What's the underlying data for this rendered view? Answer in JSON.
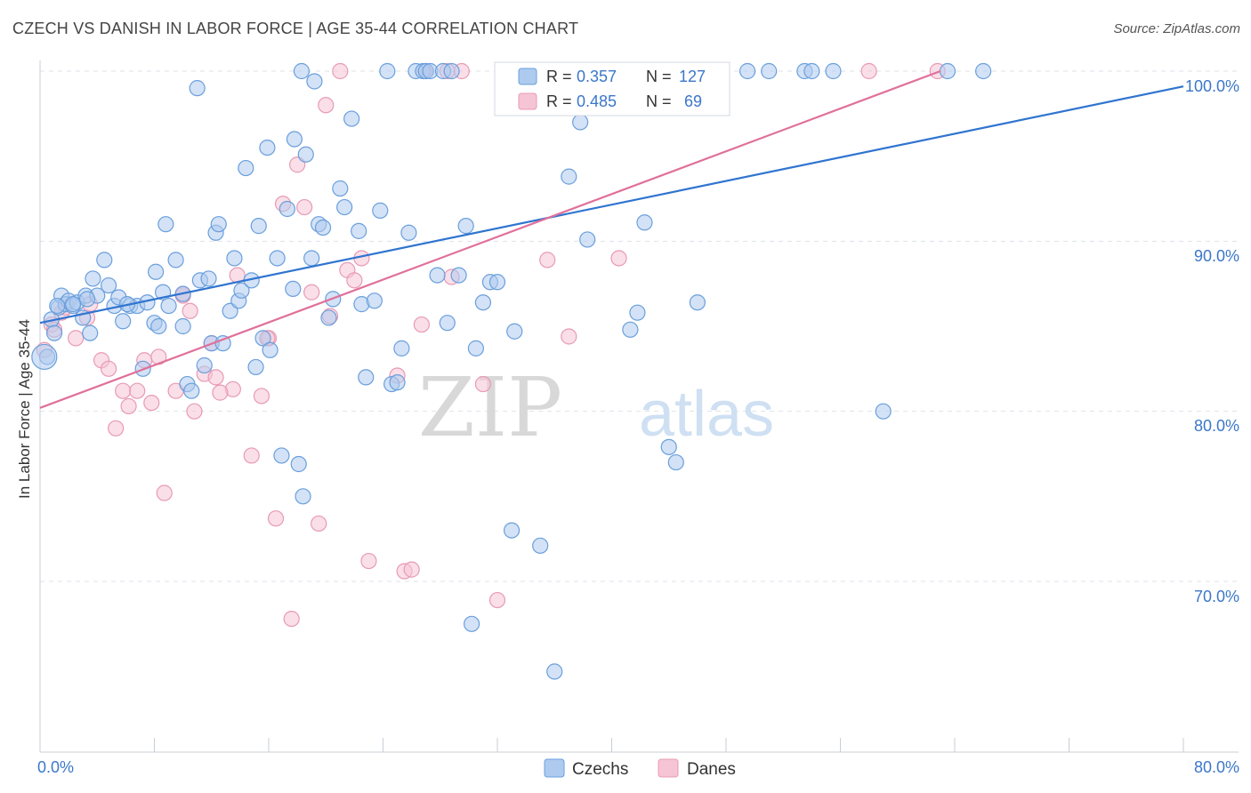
{
  "title": "CZECH VS DANISH IN LABOR FORCE | AGE 35-44 CORRELATION CHART",
  "source": "Source: ZipAtlas.com",
  "watermark": {
    "zip": "ZIP",
    "atlas": "atlas"
  },
  "colors": {
    "czech_fill": "#aecbef",
    "czech_stroke": "#6a9fdc",
    "czech_line": "#2f74d0",
    "danish_fill": "#f6c5d5",
    "danish_stroke": "#e89ab4",
    "danish_line": "#e0709a",
    "axis_text": "#3b77c9",
    "grid": "#dde2ea"
  },
  "chart_data": {
    "type": "scatter",
    "title": "CZECH VS DANISH IN LABOR FORCE | AGE 35-44 CORRELATION CHART",
    "xlabel": "",
    "ylabel": "In Labor Force | Age 35-44",
    "xlim": [
      0,
      80
    ],
    "ylim": [
      60,
      101
    ],
    "x_tick_labels": [
      "0.0%",
      "80.0%"
    ],
    "y_ticks": [
      70,
      80,
      90,
      100
    ],
    "y_tick_labels": [
      "70.0%",
      "80.0%",
      "90.0%",
      "100.0%"
    ],
    "grid": true,
    "legend": {
      "placement": "top-center",
      "rows": [
        {
          "r_label": "R =",
          "r_value": "0.357",
          "n_label": "N =",
          "n_value": "127"
        },
        {
          "r_label": "R =",
          "r_value": "0.485",
          "n_label": "N =",
          "n_value": "69"
        }
      ]
    },
    "series": [
      {
        "name": "Czechs",
        "trend": {
          "x": [
            0,
            80
          ],
          "y": [
            85.2,
            99.1
          ]
        },
        "points": [
          [
            0.5,
            83.2
          ],
          [
            0.8,
            85.4
          ],
          [
            1.0,
            84.6
          ],
          [
            1.3,
            86.1
          ],
          [
            1.5,
            86.8
          ],
          [
            1.8,
            86.3
          ],
          [
            2.0,
            86.5
          ],
          [
            2.3,
            86.2
          ],
          [
            2.6,
            86.4
          ],
          [
            3.0,
            85.5
          ],
          [
            3.2,
            86.8
          ],
          [
            3.5,
            84.6
          ],
          [
            3.7,
            87.8
          ],
          [
            4.0,
            86.8
          ],
          [
            4.5,
            88.9
          ],
          [
            4.8,
            87.4
          ],
          [
            5.2,
            86.2
          ],
          [
            5.5,
            86.7
          ],
          [
            5.8,
            85.3
          ],
          [
            6.3,
            86.2
          ],
          [
            6.8,
            86.2
          ],
          [
            7.2,
            82.5
          ],
          [
            7.5,
            86.4
          ],
          [
            8.0,
            85.2
          ],
          [
            8.1,
            88.2
          ],
          [
            8.3,
            85.0
          ],
          [
            8.6,
            87.0
          ],
          [
            9.0,
            86.2
          ],
          [
            9.5,
            88.9
          ],
          [
            10.0,
            86.9
          ],
          [
            10.0,
            85.0
          ],
          [
            10.3,
            81.6
          ],
          [
            10.6,
            81.2
          ],
          [
            11.2,
            87.7
          ],
          [
            11.5,
            82.7
          ],
          [
            11.8,
            87.8
          ],
          [
            12.0,
            84.0
          ],
          [
            12.3,
            90.5
          ],
          [
            12.5,
            91.0
          ],
          [
            12.8,
            84.0
          ],
          [
            13.3,
            85.9
          ],
          [
            13.6,
            89.0
          ],
          [
            13.9,
            86.5
          ],
          [
            14.1,
            87.1
          ],
          [
            14.4,
            94.3
          ],
          [
            14.8,
            87.7
          ],
          [
            15.1,
            82.6
          ],
          [
            15.3,
            90.9
          ],
          [
            15.6,
            84.3
          ],
          [
            15.9,
            95.5
          ],
          [
            16.1,
            83.6
          ],
          [
            16.6,
            89.0
          ],
          [
            16.9,
            77.4
          ],
          [
            17.3,
            91.9
          ],
          [
            17.7,
            87.2
          ],
          [
            18.1,
            76.9
          ],
          [
            18.4,
            75.0
          ],
          [
            18.6,
            95.1
          ],
          [
            19.0,
            89.0
          ],
          [
            19.2,
            99.4
          ],
          [
            19.5,
            91.0
          ],
          [
            19.8,
            90.8
          ],
          [
            20.2,
            85.5
          ],
          [
            20.5,
            86.6
          ],
          [
            21.0,
            93.1
          ],
          [
            21.3,
            92.0
          ],
          [
            21.8,
            97.2
          ],
          [
            22.3,
            90.6
          ],
          [
            22.5,
            86.3
          ],
          [
            22.8,
            82.0
          ],
          [
            23.4,
            86.5
          ],
          [
            23.8,
            91.8
          ],
          [
            24.3,
            100.0
          ],
          [
            24.6,
            81.6
          ],
          [
            25.0,
            81.7
          ],
          [
            25.3,
            83.7
          ],
          [
            25.8,
            90.5
          ],
          [
            26.3,
            100.0
          ],
          [
            26.8,
            100.0
          ],
          [
            27.0,
            100.0
          ],
          [
            27.3,
            100.0
          ],
          [
            27.8,
            88.0
          ],
          [
            28.2,
            100.0
          ],
          [
            28.5,
            85.2
          ],
          [
            28.8,
            100.0
          ],
          [
            29.3,
            88.0
          ],
          [
            29.8,
            90.9
          ],
          [
            30.5,
            83.7
          ],
          [
            31.0,
            86.4
          ],
          [
            31.5,
            87.6
          ],
          [
            32.0,
            87.6
          ],
          [
            33.0,
            73.0
          ],
          [
            33.2,
            84.7
          ],
          [
            35.0,
            72.1
          ],
          [
            36.0,
            64.7
          ],
          [
            37.0,
            93.8
          ],
          [
            37.8,
            97.0
          ],
          [
            38.3,
            90.1
          ],
          [
            40.5,
            100.0
          ],
          [
            41.3,
            84.8
          ],
          [
            41.5,
            98.7
          ],
          [
            41.8,
            85.8
          ],
          [
            42.3,
            91.1
          ],
          [
            44.0,
            77.9
          ],
          [
            44.5,
            77.0
          ],
          [
            45.0,
            100.0
          ],
          [
            46.0,
            86.4
          ],
          [
            47.3,
            100.0
          ],
          [
            49.5,
            100.0
          ],
          [
            51.0,
            100.0
          ],
          [
            53.5,
            100.0
          ],
          [
            54.0,
            100.0
          ],
          [
            55.5,
            100.0
          ],
          [
            59.0,
            80.0
          ],
          [
            63.5,
            100.0
          ],
          [
            66.0,
            100.0
          ],
          [
            30.2,
            67.5
          ],
          [
            2.3,
            86.3
          ],
          [
            6.1,
            86.3
          ],
          [
            1.2,
            86.2
          ],
          [
            3.3,
            86.6
          ],
          [
            18.3,
            100.0
          ],
          [
            40.8,
            100.0
          ],
          [
            43.0,
            100.0
          ],
          [
            17.8,
            96.0
          ],
          [
            11.0,
            99.0
          ],
          [
            8.8,
            91.0
          ]
        ]
      },
      {
        "name": "Danes",
        "trend": {
          "x": [
            0,
            63
          ],
          "y": [
            80.2,
            100.0
          ]
        },
        "points": [
          [
            0.3,
            83.6
          ],
          [
            0.8,
            85.1
          ],
          [
            1.5,
            85.8
          ],
          [
            1.8,
            86.1
          ],
          [
            2.5,
            84.3
          ],
          [
            3.3,
            85.5
          ],
          [
            4.3,
            83.0
          ],
          [
            4.8,
            82.5
          ],
          [
            5.3,
            79.0
          ],
          [
            5.8,
            81.2
          ],
          [
            6.2,
            80.3
          ],
          [
            6.8,
            81.2
          ],
          [
            7.3,
            83.0
          ],
          [
            7.8,
            80.5
          ],
          [
            8.3,
            83.2
          ],
          [
            8.7,
            75.2
          ],
          [
            9.5,
            81.2
          ],
          [
            10.0,
            86.8
          ],
          [
            10.5,
            85.9
          ],
          [
            10.8,
            80.0
          ],
          [
            11.5,
            82.2
          ],
          [
            12.0,
            84.0
          ],
          [
            12.3,
            82.0
          ],
          [
            13.5,
            81.3
          ],
          [
            13.8,
            88.0
          ],
          [
            14.8,
            77.4
          ],
          [
            15.5,
            80.9
          ],
          [
            16.0,
            84.3
          ],
          [
            16.5,
            73.7
          ],
          [
            17.0,
            92.2
          ],
          [
            17.6,
            67.8
          ],
          [
            18.0,
            94.5
          ],
          [
            18.5,
            92.0
          ],
          [
            19.0,
            87.0
          ],
          [
            19.5,
            73.4
          ],
          [
            20.0,
            98.0
          ],
          [
            20.3,
            85.6
          ],
          [
            21.0,
            100.0
          ],
          [
            21.5,
            88.3
          ],
          [
            22.0,
            87.7
          ],
          [
            22.5,
            89.0
          ],
          [
            23.0,
            71.2
          ],
          [
            25.0,
            82.1
          ],
          [
            25.5,
            70.6
          ],
          [
            26.0,
            70.7
          ],
          [
            27.0,
            100.0
          ],
          [
            28.5,
            100.0
          ],
          [
            28.8,
            87.9
          ],
          [
            29.5,
            100.0
          ],
          [
            31.0,
            81.6
          ],
          [
            32.0,
            68.9
          ],
          [
            32.5,
            100.0
          ],
          [
            33.0,
            100.0
          ],
          [
            35.5,
            88.9
          ],
          [
            37.0,
            84.4
          ],
          [
            38.0,
            100.0
          ],
          [
            40.5,
            89.0
          ],
          [
            41.0,
            100.0
          ],
          [
            42.5,
            100.0
          ],
          [
            43.5,
            100.0
          ],
          [
            58.0,
            100.0
          ],
          [
            62.8,
            100.0
          ],
          [
            1.0,
            84.8
          ],
          [
            26.7,
            85.1
          ],
          [
            27.0,
            100.0
          ],
          [
            12.6,
            81.1
          ],
          [
            10.0,
            86.9
          ],
          [
            3.5,
            86.3
          ],
          [
            15.9,
            84.3
          ]
        ]
      }
    ]
  }
}
